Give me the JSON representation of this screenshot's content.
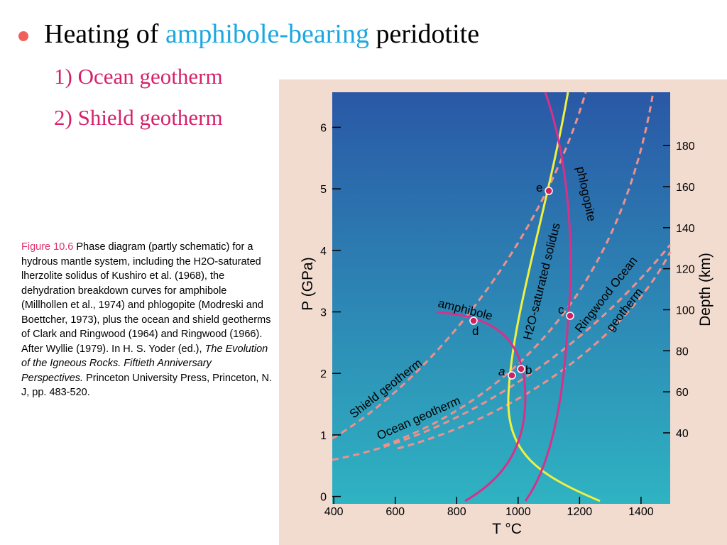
{
  "slide": {
    "bullet": {
      "before": "Heating of ",
      "highlight": "amphibole-bearing",
      "after": " peridotite"
    },
    "items": [
      "1) Ocean geotherm",
      "2) Shield geotherm"
    ],
    "caption": {
      "label": "Figure 10.6",
      "text": " Phase diagram (partly schematic) for a hydrous mantle system, including the H2O-saturated lherzolite solidus of Kushiro et al. (1968), the dehydration breakdown curves for amphibole (Millhollen et al., 1974) and phlogopite (Modreski and Boettcher, 1973), plus the ocean and shield geotherms of Clark and Ringwood (1964) and Ringwood (1966). After Wyllie (1979). In H. S. Yoder (ed.), ",
      "italic": "The Evolution of the Igneous Rocks. Fiftieth Anniversary Perspectives.",
      "after": " Princeton University Press, Princeton, N. J, pp. 483-520."
    },
    "figure": {
      "p_axis": {
        "label": "P (GPa)",
        "lim": [
          -0.12,
          6.57
        ],
        "ticks": [
          0,
          1,
          2,
          3,
          4,
          5,
          6
        ]
      },
      "depth_axis": {
        "label": "Depth (km)",
        "lim": [
          5.4,
          206
        ],
        "ticks": [
          40,
          60,
          80,
          100,
          120,
          140,
          160,
          180
        ]
      },
      "t_axis": {
        "label": "T °C",
        "lim": [
          395,
          1495
        ],
        "ticks": [
          400,
          600,
          800,
          1000,
          1200,
          1400
        ]
      },
      "curve_labels": {
        "amphibole": "amphibole",
        "phlogopite": "phlogopite",
        "solidus": "H2O-saturated solidus",
        "ringwood1": "Ringwood Ocean",
        "ringwood2": "geotherm",
        "shield": "Shield geotherm",
        "ocean": "Ocean geotherm"
      },
      "points": [
        "a",
        "b",
        "c",
        "d",
        "e"
      ]
    }
  }
}
